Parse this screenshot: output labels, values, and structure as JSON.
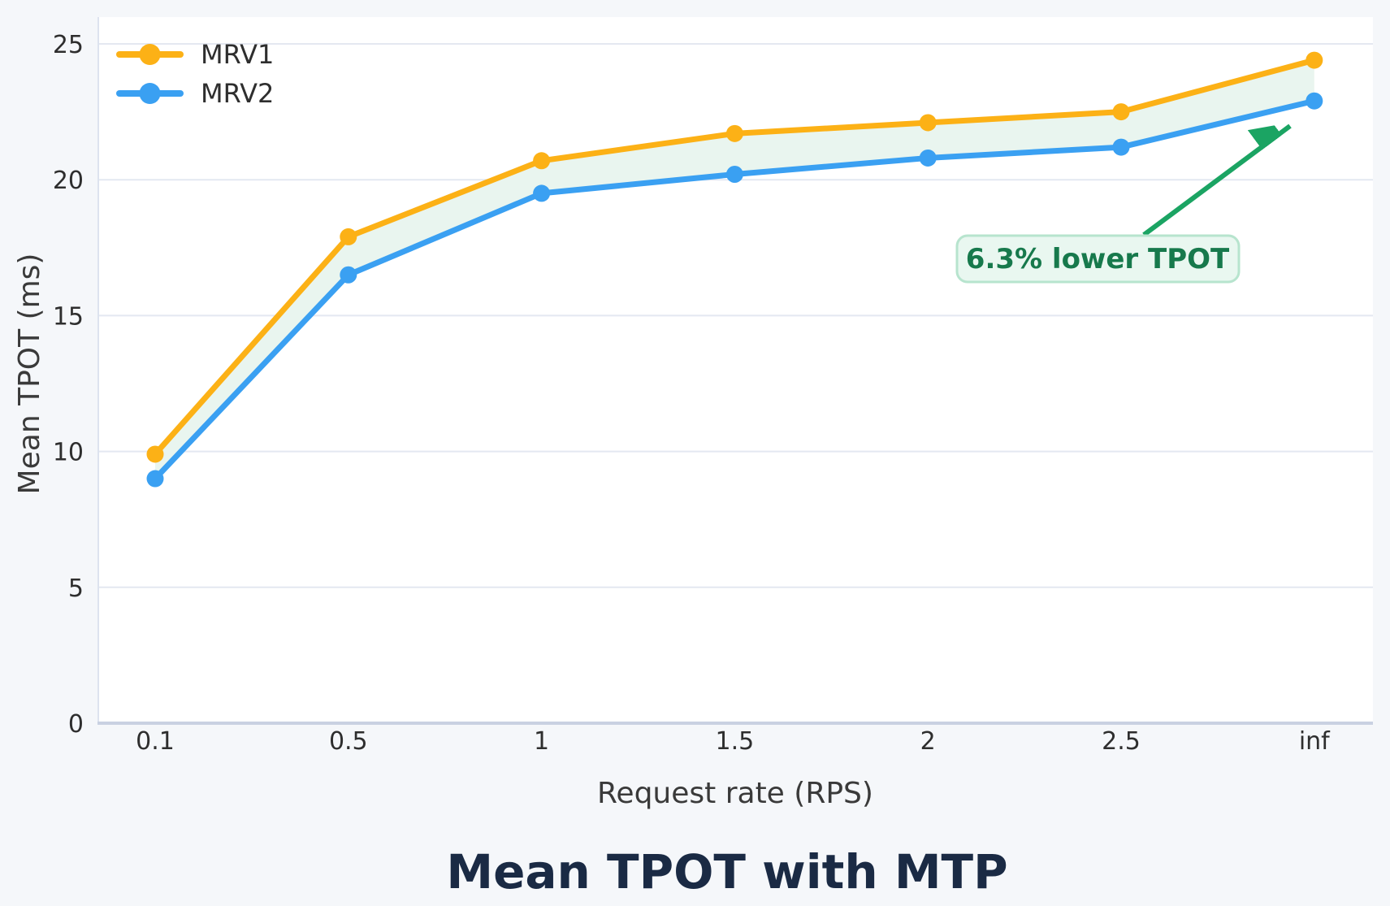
{
  "page": {
    "background_color": "#F5F7FA",
    "plot_background_color": "#FFFFFF",
    "gridline_color": "#E4E8F1",
    "axis_line_color": "#C9D1E2",
    "spine_color": "#DDE3EF",
    "tick_label_color": "#2E2E2E",
    "title_color": "#1A2A44"
  },
  "chart_data": {
    "type": "line",
    "title": "Mean TPOT with MTP",
    "xlabel": "Request rate (RPS)",
    "ylabel": "Mean TPOT (ms)",
    "categories": [
      "0.1",
      "0.5",
      "1",
      "1.5",
      "2",
      "2.5",
      "inf"
    ],
    "yticks": [
      0,
      5,
      10,
      15,
      20,
      25
    ],
    "ylim": [
      0,
      26
    ],
    "grid": "horizontal",
    "legend_position": "top-left",
    "series": [
      {
        "name": "MRV1",
        "color": "#FCB116",
        "values": [
          9.9,
          17.9,
          20.7,
          21.7,
          22.1,
          22.5,
          24.4
        ]
      },
      {
        "name": "MRV2",
        "color": "#3AA0F2",
        "values": [
          9.0,
          16.5,
          19.5,
          20.2,
          20.8,
          21.2,
          22.9
        ]
      }
    ],
    "fill_between": {
      "between": [
        "MRV1",
        "MRV2"
      ],
      "color": "#E9F5EF"
    },
    "annotation": {
      "text": "6.3% lower TPOT",
      "text_color": "#17794C",
      "box_fill": "#E9F7F0",
      "box_border": "#B7E4CE",
      "arrow_color": "#1BA463"
    }
  }
}
